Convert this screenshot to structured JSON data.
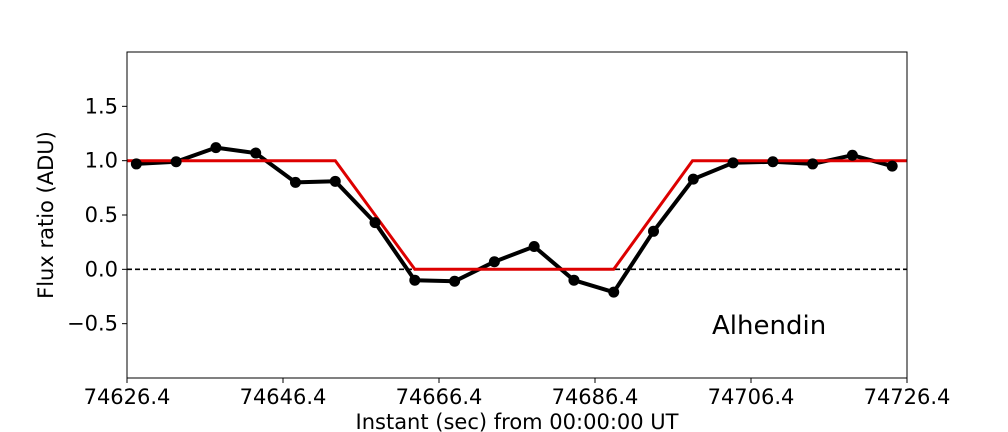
{
  "chart_data": {
    "type": "line",
    "xlabel": "Instant (sec) from 00:00:00 UT",
    "ylabel": "Flux ratio (ADU)",
    "xlim": [
      74626.4,
      74726.4
    ],
    "ylim": [
      -1.0,
      2.0
    ],
    "x_ticks": [
      74626.4,
      74646.4,
      74666.4,
      74686.4,
      74706.4,
      74726.4
    ],
    "x_tick_labels": [
      "74626.4",
      "74646.4",
      "74666.4",
      "74686.4",
      "74706.4",
      "74726.4"
    ],
    "y_ticks": [
      -0.5,
      0.0,
      0.5,
      1.0,
      1.5
    ],
    "y_tick_labels": [
      "−0.5",
      "0.0",
      "0.5",
      "1.0",
      "1.5"
    ],
    "annotation": "Alhendin",
    "reference_line": {
      "y": 0.0,
      "style": "dashed",
      "color": "#000000"
    },
    "grid": false,
    "series": [
      {
        "kind": "observed",
        "color": "#000000",
        "marker": "circle",
        "x": [
          74627.6,
          74632.7,
          74637.8,
          74642.9,
          74648.0,
          74653.1,
          74658.2,
          74663.3,
          74668.4,
          74673.5,
          74678.6,
          74683.7,
          74688.8,
          74693.9,
          74699.0,
          74704.1,
          74709.2,
          74714.3,
          74719.4,
          74724.5
        ],
        "y": [
          0.97,
          0.99,
          1.12,
          1.07,
          0.8,
          0.81,
          0.43,
          -0.1,
          -0.11,
          0.07,
          0.21,
          -0.1,
          -0.21,
          0.35,
          0.83,
          0.98,
          0.99,
          0.97,
          1.05,
          0.95
        ]
      },
      {
        "kind": "model",
        "color": "#dd0000",
        "x": [
          74626.4,
          74653.1,
          74663.3,
          74688.8,
          74698.9,
          74726.4
        ],
        "y": [
          1.0,
          1.0,
          0.0,
          0.0,
          1.0,
          1.0
        ]
      }
    ]
  }
}
